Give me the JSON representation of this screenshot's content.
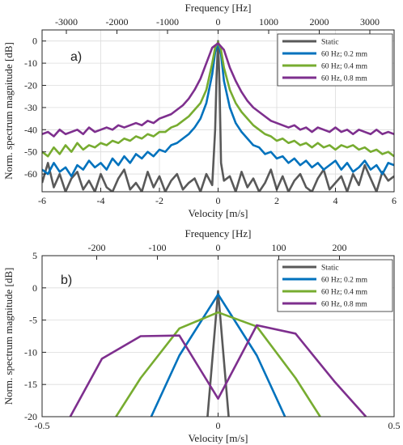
{
  "chart_data": [
    {
      "type": "line",
      "panel_label": "a)",
      "xlabel": "Velocity [m/s]",
      "ylabel": "Norm. spectrum magnitude [dB]",
      "top_xlabel": "Frequency [Hz]",
      "xlim": [
        -6,
        6
      ],
      "ylim": [
        -68,
        5
      ],
      "xticks": [
        -6,
        -4,
        -2,
        0,
        2,
        4,
        6
      ],
      "yticks": [
        0,
        -10,
        -20,
        -30,
        -40,
        -50,
        -60
      ],
      "top_xticks": [
        -3000,
        -2000,
        -1000,
        0,
        1000,
        2000,
        3000
      ],
      "top_xlim": [
        -3480,
        3480
      ],
      "grid": true,
      "legend_position": "top-right",
      "series": [
        {
          "name": "Static",
          "color": "#595959",
          "x": [
            -6,
            -5.8,
            -5.6,
            -5.4,
            -5.2,
            -5,
            -4.8,
            -4.6,
            -4.4,
            -4.2,
            -4,
            -3.8,
            -3.6,
            -3.4,
            -3.2,
            -3,
            -2.8,
            -2.6,
            -2.4,
            -2.2,
            -2,
            -1.8,
            -1.6,
            -1.4,
            -1.2,
            -1,
            -0.8,
            -0.6,
            -0.4,
            -0.2,
            -0.1,
            -0.05,
            0,
            0.05,
            0.1,
            0.2,
            0.4,
            0.6,
            0.8,
            1,
            1.2,
            1.4,
            1.6,
            1.8,
            2,
            2.2,
            2.4,
            2.6,
            2.8,
            3,
            3.2,
            3.4,
            3.6,
            3.8,
            4,
            4.2,
            4.4,
            4.6,
            4.8,
            5,
            5.2,
            5.4,
            5.6,
            5.8,
            6
          ],
          "y": [
            -64,
            -55,
            -66,
            -60,
            -68,
            -62,
            -59,
            -67,
            -63,
            -68,
            -60,
            -66,
            -68,
            -62,
            -58,
            -67,
            -64,
            -68,
            -59,
            -66,
            -61,
            -68,
            -63,
            -60,
            -67,
            -64,
            -62,
            -68,
            -60,
            -65,
            -40,
            -15,
            0,
            -20,
            -55,
            -63,
            -61,
            -68,
            -59,
            -66,
            -62,
            -68,
            -64,
            -58,
            -67,
            -61,
            -68,
            -63,
            -60,
            -66,
            -68,
            -62,
            -58,
            -67,
            -64,
            -61,
            -68,
            -60,
            -65,
            -56,
            -62,
            -68,
            -59,
            -63,
            -61
          ]
        },
        {
          "name": "60 Hz; 0.2 mm",
          "color": "#0072BD",
          "x": [
            -6,
            -5.8,
            -5.6,
            -5.4,
            -5.2,
            -5,
            -4.8,
            -4.6,
            -4.4,
            -4.2,
            -4,
            -3.8,
            -3.6,
            -3.4,
            -3.2,
            -3,
            -2.8,
            -2.6,
            -2.4,
            -2.2,
            -2,
            -1.8,
            -1.6,
            -1.4,
            -1.2,
            -1,
            -0.8,
            -0.6,
            -0.4,
            -0.2,
            -0.1,
            0,
            0.1,
            0.2,
            0.4,
            0.6,
            0.8,
            1,
            1.2,
            1.4,
            1.6,
            1.8,
            2,
            2.2,
            2.4,
            2.6,
            2.8,
            3,
            3.2,
            3.4,
            3.6,
            3.8,
            4,
            4.2,
            4.4,
            4.6,
            4.8,
            5,
            5.2,
            5.4,
            5.6,
            5.8,
            6
          ],
          "y": [
            -58,
            -60,
            -55,
            -59,
            -57,
            -61,
            -56,
            -58,
            -54,
            -57,
            -55,
            -58,
            -53,
            -56,
            -52,
            -55,
            -51,
            -53,
            -50,
            -52,
            -49,
            -50,
            -47,
            -46,
            -44,
            -42,
            -39,
            -35,
            -28,
            -15,
            -5,
            -1,
            -6,
            -18,
            -30,
            -37,
            -41,
            -44,
            -47,
            -48,
            -51,
            -50,
            -53,
            -52,
            -55,
            -53,
            -56,
            -54,
            -57,
            -55,
            -58,
            -56,
            -54,
            -58,
            -55,
            -59,
            -57,
            -54,
            -58,
            -56,
            -60,
            -55,
            -56
          ]
        },
        {
          "name": "60 Hz; 0.4 mm",
          "color": "#77AC30",
          "x": [
            -6,
            -5.8,
            -5.6,
            -5.4,
            -5.2,
            -5,
            -4.8,
            -4.6,
            -4.4,
            -4.2,
            -4,
            -3.8,
            -3.6,
            -3.4,
            -3.2,
            -3,
            -2.8,
            -2.6,
            -2.4,
            -2.2,
            -2,
            -1.8,
            -1.6,
            -1.4,
            -1.2,
            -1,
            -0.8,
            -0.6,
            -0.4,
            -0.2,
            -0.1,
            0,
            0.1,
            0.2,
            0.4,
            0.6,
            0.8,
            1,
            1.2,
            1.4,
            1.6,
            1.8,
            2,
            2.2,
            2.4,
            2.6,
            2.8,
            3,
            3.2,
            3.4,
            3.6,
            3.8,
            4,
            4.2,
            4.4,
            4.6,
            4.8,
            5,
            5.2,
            5.4,
            5.6,
            5.8,
            6
          ],
          "y": [
            -50,
            -52,
            -48,
            -51,
            -47,
            -50,
            -46,
            -49,
            -47,
            -48,
            -46,
            -47,
            -45,
            -46,
            -44,
            -45,
            -43,
            -44,
            -42,
            -43,
            -41,
            -41,
            -39,
            -38,
            -36,
            -34,
            -31,
            -28,
            -22,
            -10,
            -3,
            -0.5,
            -4,
            -12,
            -22,
            -28,
            -32,
            -35,
            -38,
            -40,
            -42,
            -43,
            -45,
            -44,
            -46,
            -45,
            -47,
            -46,
            -48,
            -46,
            -48,
            -47,
            -49,
            -47,
            -48,
            -47,
            -49,
            -48,
            -50,
            -49,
            -51,
            -50,
            -52
          ]
        },
        {
          "name": "60 Hz, 0.8 mm",
          "color": "#7E2F8E",
          "x": [
            -6,
            -5.8,
            -5.6,
            -5.4,
            -5.2,
            -5,
            -4.8,
            -4.6,
            -4.4,
            -4.2,
            -4,
            -3.8,
            -3.6,
            -3.4,
            -3.2,
            -3,
            -2.8,
            -2.6,
            -2.4,
            -2.2,
            -2,
            -1.8,
            -1.6,
            -1.4,
            -1.2,
            -1,
            -0.8,
            -0.6,
            -0.4,
            -0.2,
            0,
            0.2,
            0.4,
            0.6,
            0.8,
            1,
            1.2,
            1.4,
            1.6,
            1.8,
            2,
            2.2,
            2.4,
            2.6,
            2.8,
            3,
            3.2,
            3.4,
            3.6,
            3.8,
            4,
            4.2,
            4.4,
            4.6,
            4.8,
            5,
            5.2,
            5.4,
            5.6,
            5.8,
            6
          ],
          "y": [
            -42,
            -41,
            -43,
            -40,
            -42,
            -41,
            -40,
            -42,
            -39,
            -41,
            -40,
            -39,
            -40,
            -38,
            -39,
            -38,
            -37,
            -38,
            -36,
            -37,
            -35,
            -34,
            -33,
            -31,
            -29,
            -26,
            -22,
            -17,
            -10,
            -3,
            -1,
            -4,
            -12,
            -18,
            -23,
            -27,
            -30,
            -32,
            -34,
            -36,
            -37,
            -38,
            -39,
            -38,
            -40,
            -39,
            -41,
            -39,
            -40,
            -41,
            -39,
            -41,
            -40,
            -42,
            -40,
            -41,
            -42,
            -40,
            -42,
            -41,
            -42
          ]
        }
      ]
    },
    {
      "type": "line",
      "panel_label": "b)",
      "xlabel": "Velocity [m/s]",
      "ylabel": "Norm. spectrum magnitude [dB]",
      "top_xlabel": "Frequency [Hz]",
      "xlim": [
        -0.5,
        0.5
      ],
      "ylim": [
        -20,
        5
      ],
      "xticks": [
        -0.5,
        0,
        0.5
      ],
      "yticks": [
        5,
        0,
        -5,
        -10,
        -15,
        -20
      ],
      "top_xticks": [
        -200,
        -100,
        0,
        100,
        200
      ],
      "top_xlim": [
        -290,
        290
      ],
      "grid": true,
      "legend_position": "top-right",
      "series": [
        {
          "name": "Static",
          "color": "#595959",
          "x": [
            -0.03,
            0,
            0.03
          ],
          "y": [
            -20,
            -0.5,
            -20
          ]
        },
        {
          "name": "60 Hz; 0.2 mm",
          "color": "#0072BD",
          "x": [
            -0.19,
            -0.11,
            0,
            0.11,
            0.19
          ],
          "y": [
            -20,
            -10.5,
            -1,
            -10.5,
            -20
          ]
        },
        {
          "name": "60 Hz; 0.4 mm",
          "color": "#77AC30",
          "x": [
            -0.29,
            -0.22,
            -0.11,
            0,
            0.11,
            0.22,
            0.29
          ],
          "y": [
            -20,
            -14,
            -6.3,
            -3.8,
            -6,
            -14,
            -20
          ]
        },
        {
          "name": "60 Hz, 0.8 mm",
          "color": "#7E2F8E",
          "x": [
            -0.42,
            -0.33,
            -0.22,
            -0.11,
            0,
            0.11,
            0.22,
            0.33,
            0.42
          ],
          "y": [
            -20,
            -11,
            -7.5,
            -7.4,
            -17.2,
            -5.8,
            -7.1,
            -14.5,
            -20
          ]
        }
      ]
    }
  ]
}
